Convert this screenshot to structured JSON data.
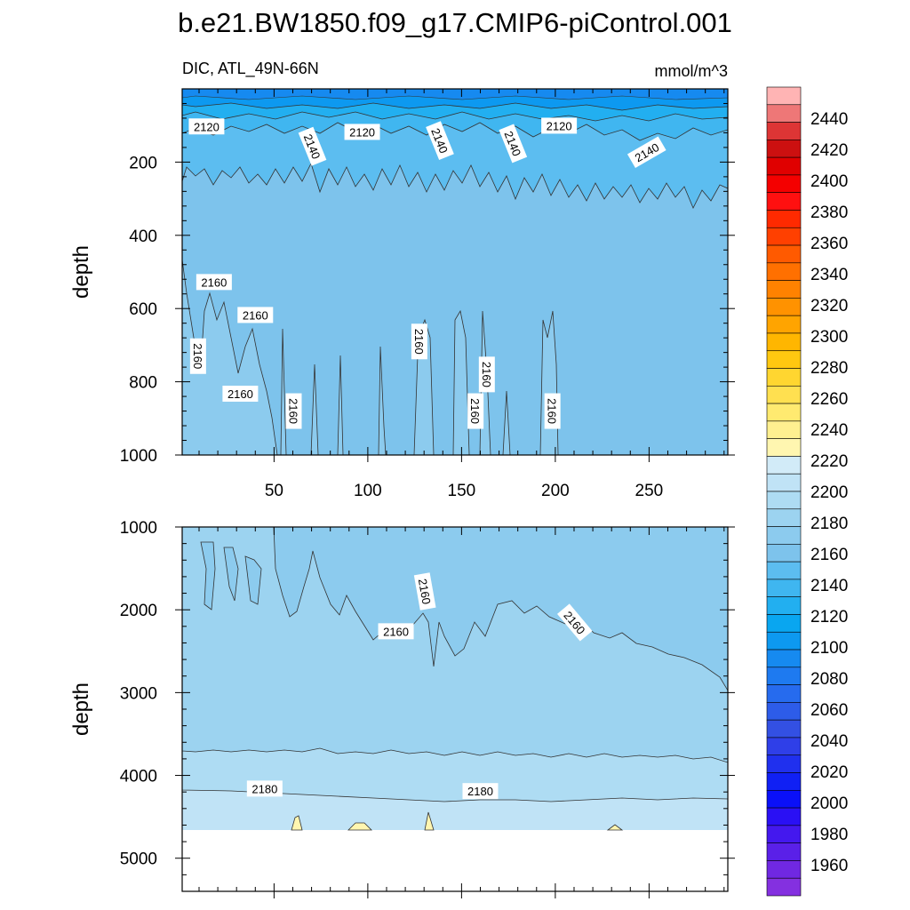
{
  "figure": {
    "title": "b.e21.BW1850.f09_g17.CMIP6-piControl.001",
    "left_string": "DIC, ATL_49N-66N",
    "right_string": "mmol/m^3"
  },
  "chart_data": [
    {
      "type": "heatmap",
      "panel": "upper",
      "title": "DIC, ATL_49N-66N",
      "units": "mmol/m^3",
      "ylabel": "depth",
      "xlim": [
        1,
        292
      ],
      "ylim": [
        0,
        1000
      ],
      "y_reversed": true,
      "x_ticks": [
        50,
        100,
        150,
        200,
        250
      ],
      "y_ticks": [
        200,
        400,
        600,
        800,
        1000
      ],
      "contour_bands_by_depth": [
        {
          "depth_top": 0,
          "depth_bottom": 35,
          "value": "2100-2120"
        },
        {
          "depth_top": 35,
          "depth_bottom": 120,
          "value": "2120-2140"
        },
        {
          "depth_top": 120,
          "depth_bottom": 250,
          "value": "2140-2150"
        },
        {
          "depth_top": 250,
          "depth_bottom": 1000,
          "value": "2150-2160"
        }
      ],
      "contour_labels": [
        {
          "text": "2120",
          "x": 14,
          "depth": 105
        },
        {
          "text": "2140",
          "x": 70,
          "depth": 158
        },
        {
          "text": "2120",
          "x": 97,
          "depth": 120
        },
        {
          "text": "2140",
          "x": 138,
          "depth": 142
        },
        {
          "text": "2140",
          "x": 177,
          "depth": 150
        },
        {
          "text": "2120",
          "x": 202,
          "depth": 103
        },
        {
          "text": "2140",
          "x": 249,
          "depth": 175
        },
        {
          "text": "2160",
          "x": 18,
          "depth": 530
        },
        {
          "text": "2160",
          "x": 40,
          "depth": 620
        },
        {
          "text": "2160",
          "x": 9,
          "depth": 730
        },
        {
          "text": "2160",
          "x": 32,
          "depth": 835
        },
        {
          "text": "2160",
          "x": 60,
          "depth": 880
        },
        {
          "text": "2160",
          "x": 127,
          "depth": 690
        },
        {
          "text": "2160",
          "x": 163,
          "depth": 780
        },
        {
          "text": "2160",
          "x": 157,
          "depth": 880
        },
        {
          "text": "2160",
          "x": 198,
          "depth": 880
        }
      ]
    },
    {
      "type": "heatmap",
      "panel": "lower",
      "ylabel": "depth",
      "xlim": [
        1,
        292
      ],
      "ylim": [
        1000,
        5400
      ],
      "y_reversed": true,
      "y_ticks": [
        1000,
        2000,
        3000,
        4000,
        5000
      ],
      "contour_bands_by_depth": [
        {
          "depth_top": 1000,
          "depth_bottom": 2300,
          "value": "2150-2160"
        },
        {
          "depth_top": 2300,
          "depth_bottom": 3700,
          "value": "2160-2170"
        },
        {
          "depth_top": 3700,
          "depth_bottom": 4150,
          "value": "2170-2180"
        },
        {
          "depth_top": 4150,
          "depth_bottom": 4300,
          "value": "2180-2190"
        },
        {
          "depth_top": 4300,
          "depth_bottom": 4620,
          "value": "2190-2200"
        }
      ],
      "missing_below_depth": 4620,
      "contour_labels": [
        {
          "text": "2160",
          "x": 130,
          "depth": 1780
        },
        {
          "text": "2160",
          "x": 115,
          "depth": 2270
        },
        {
          "text": "2160",
          "x": 210,
          "depth": 2160
        },
        {
          "text": "2180",
          "x": 45,
          "depth": 4170
        },
        {
          "text": "2180",
          "x": 160,
          "depth": 4200
        }
      ]
    }
  ],
  "colorbar": {
    "labels": [
      "2440",
      "2420",
      "2400",
      "2380",
      "2360",
      "2340",
      "2320",
      "2300",
      "2280",
      "2260",
      "2240",
      "2220",
      "2200",
      "2180",
      "2160",
      "2140",
      "2120",
      "2100",
      "2080",
      "2060",
      "2040",
      "2020",
      "2000",
      "1980",
      "1960"
    ],
    "colors_top_to_bottom": [
      "#ffb4b4",
      "#ee7777",
      "#dd3535",
      "#cc1010",
      "#e00000",
      "#f40000",
      "#ff1010",
      "#ff2a00",
      "#ff4000",
      "#ff5a00",
      "#ff7000",
      "#ff8200",
      "#ff9200",
      "#ffa400",
      "#ffb600",
      "#ffc810",
      "#ffd630",
      "#ffe050",
      "#ffea70",
      "#fff090",
      "#fff6b0",
      "#d2ebf8",
      "#c0e3f6",
      "#aedcf3",
      "#9cd3f0",
      "#8ccbee",
      "#7dc3ec",
      "#5cbdf0",
      "#3fb6f0",
      "#22aff0",
      "#09a6f0",
      "#0d99f0",
      "#168af0",
      "#1e7af0",
      "#266bee",
      "#2d5ce9",
      "#3350e3",
      "#2f3fe8",
      "#2030ee",
      "#1020f4",
      "#0a10f8",
      "#2a10f4",
      "#4418ee",
      "#5a20e8",
      "#7028e2",
      "#8430e0"
    ]
  }
}
